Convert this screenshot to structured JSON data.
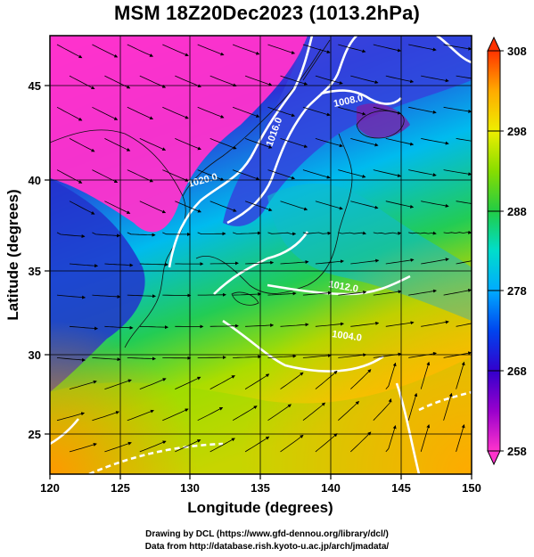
{
  "title": "MSM 18Z20Dec2023 (1013.2hPa)",
  "chart_data": {
    "type": "heatmap",
    "title": "MSM 18Z20Dec2023 (1013.2hPa)",
    "xlabel": "Longitude (degrees)",
    "ylabel": "Latitude  (degrees)",
    "xlim": [
      120,
      150
    ],
    "ylim": [
      22.4,
      47.6
    ],
    "x_ticks": [
      "120",
      "125",
      "130",
      "135",
      "140",
      "145",
      "150"
    ],
    "y_ticks": [
      "25",
      "30",
      "35",
      "40",
      "45"
    ],
    "x_tick_values": [
      120,
      125,
      130,
      135,
      140,
      145,
      150
    ],
    "y_tick_values": [
      25,
      30,
      35,
      40,
      45
    ],
    "grid": true,
    "colorbar": {
      "ticks": [
        "258",
        "268",
        "278",
        "288",
        "298",
        "308"
      ],
      "values": [
        258,
        268,
        278,
        288,
        298,
        308
      ],
      "palette": [
        "#ff33cc",
        "#9900cc",
        "#3300cc",
        "#0066ff",
        "#00ccff",
        "#00ddaa",
        "#22cc44",
        "#99dd00",
        "#eeee00",
        "#ffaa00",
        "#ff4400"
      ],
      "placement": "right"
    },
    "contours": [
      {
        "label": "1020.0",
        "value": 1020.0
      },
      {
        "label": "1016.0",
        "value": 1016.0
      },
      {
        "label": "1008.0",
        "value": 1008.0
      },
      {
        "label": "1012.0",
        "value": 1012.0
      },
      {
        "label": "1004.0",
        "value": 1004.0
      }
    ]
  },
  "credits": {
    "line1": "Drawing by DCL (https://www.gfd-dennou.org/library/dcl/)",
    "line2": "Data from http://database.rish.kyoto-u.ac.jp/arch/jmadata/"
  }
}
